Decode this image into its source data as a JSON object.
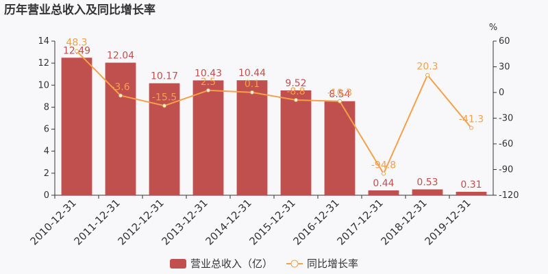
{
  "chart_data": {
    "type": "bar_line",
    "title": "历年营业总收入及同比增长率",
    "y2_label": "%",
    "categories": [
      "2010-12-31",
      "2011-12-31",
      "2012-12-31",
      "2013-12-31",
      "2014-12-31",
      "2015-12-31",
      "2016-12-31",
      "2017-12-31",
      "2018-12-31",
      "2019-12-31"
    ],
    "series": [
      {
        "name": "营业总收入（亿）",
        "type": "bar",
        "color": "#c0504d",
        "values": [
          12.49,
          12.04,
          10.17,
          10.43,
          10.44,
          9.52,
          8.54,
          0.44,
          0.53,
          0.31
        ]
      },
      {
        "name": "同比增长率",
        "type": "line",
        "axis": "y2",
        "color": "#f5a04a",
        "values": [
          48.3,
          -3.6,
          -15.5,
          2.5,
          0.1,
          -8.8,
          -10.3,
          -94.8,
          20.3,
          -41.3
        ]
      }
    ],
    "ylim": [
      0,
      14
    ],
    "yticks": [
      0,
      2,
      4,
      6,
      8,
      10,
      12,
      14
    ],
    "y2lim": [
      -120,
      60
    ],
    "y2ticks": [
      -120,
      -90,
      -60,
      -30,
      0,
      30,
      60
    ]
  }
}
